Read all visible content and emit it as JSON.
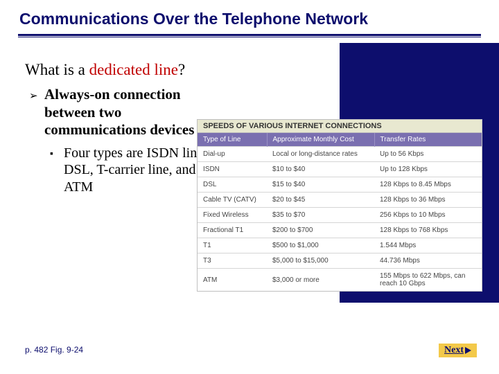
{
  "title": "Communications Over the Telephone Network",
  "question": {
    "prefix": "What is a ",
    "emph": "dedicated line",
    "suffix": "?"
  },
  "bullet": "Always-on connection between two communications devices",
  "subbullet": "Four types are ISDN line, DSL, T-carrier line, and ATM",
  "table": {
    "caption": "SPEEDS OF VARIOUS INTERNET CONNECTIONS",
    "columns": [
      "Type of Line",
      "Approximate Monthly Cost",
      "Transfer Rates"
    ],
    "rows": [
      [
        "Dial-up",
        "Local or long-distance rates",
        "Up to 56 Kbps"
      ],
      [
        "ISDN",
        "$10 to $40",
        "Up to 128 Kbps"
      ],
      [
        "DSL",
        "$15 to $40",
        "128 Kbps to 8.45 Mbps"
      ],
      [
        "Cable TV (CATV)",
        "$20 to $45",
        "128 Kbps to 36 Mbps"
      ],
      [
        "Fixed Wireless",
        "$35 to $70",
        "256 Kbps to 10 Mbps"
      ],
      [
        "Fractional T1",
        "$200 to $700",
        "128 Kbps to 768 Kbps"
      ],
      [
        "T1",
        "$500 to $1,000",
        "1.544 Mbps"
      ],
      [
        "T3",
        "$5,000 to $15,000",
        "44.736 Mbps"
      ],
      [
        "ATM",
        "$3,000 or more",
        "155 Mbps to 622 Mbps, can reach 10 Gbps"
      ]
    ]
  },
  "footer": "p. 482 Fig. 9-24",
  "next_label": "Next",
  "colors": {
    "brand_navy": "#0d0e6d",
    "emph_red": "#c00000",
    "btn_yellow": "#f3c94a",
    "table_header_bg": "#7a6fb0",
    "caption_bg": "#e8e8d0"
  }
}
